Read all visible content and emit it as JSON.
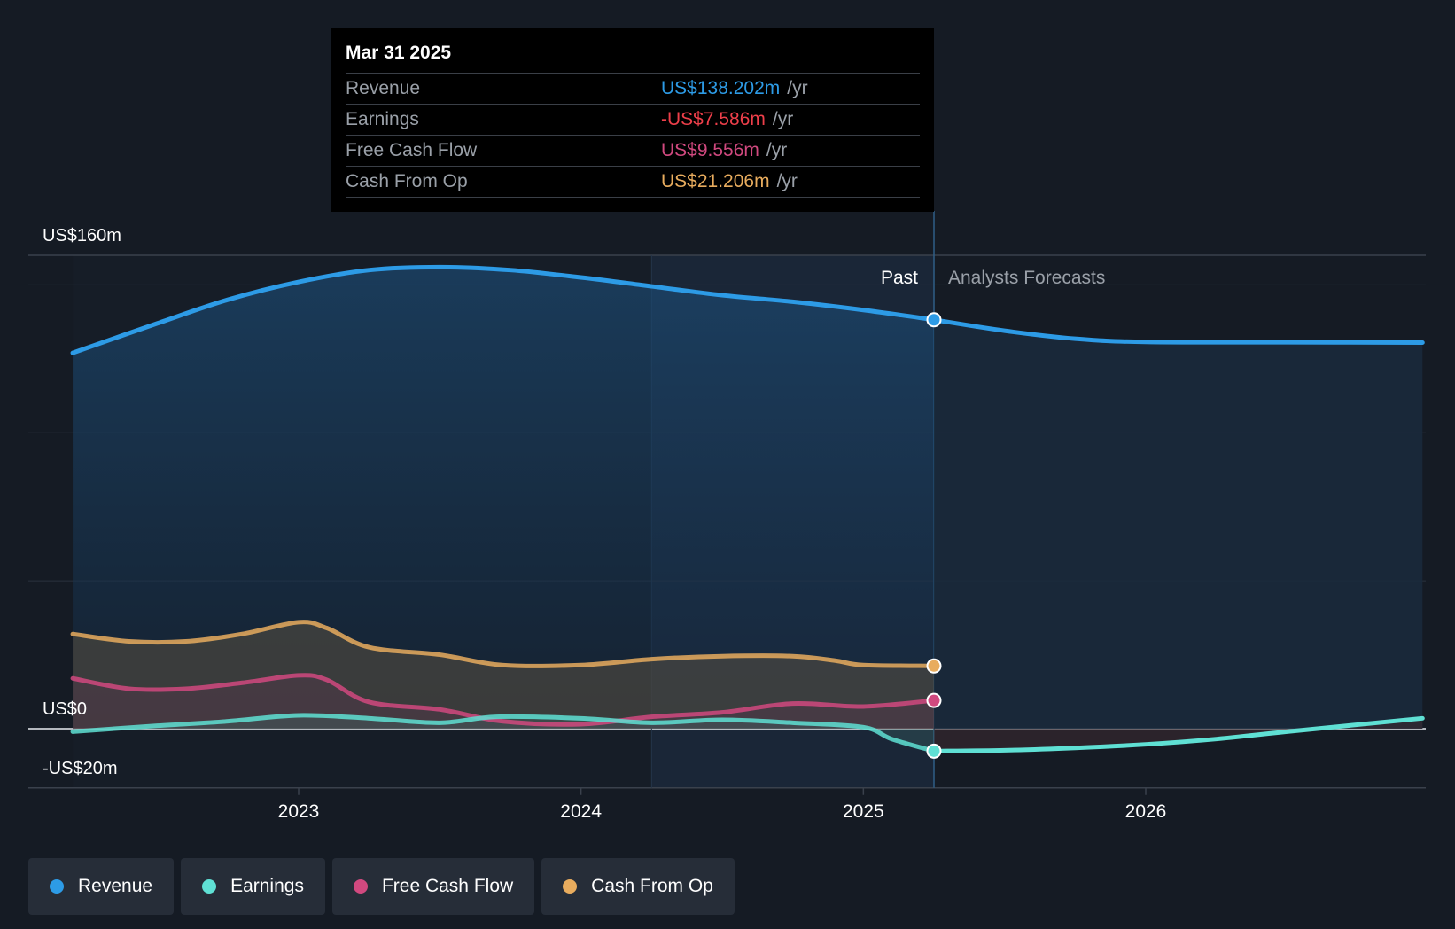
{
  "tooltip": {
    "date": "Mar 31 2025",
    "rows": [
      {
        "label": "Revenue",
        "value": "US$138.202m",
        "unit": "/yr",
        "color": "#2d9be6"
      },
      {
        "label": "Earnings",
        "value": "-US$7.586m",
        "unit": "/yr",
        "color": "#ee3f4a"
      },
      {
        "label": "Free Cash Flow",
        "value": "US$9.556m",
        "unit": "/yr",
        "color": "#d1497f"
      },
      {
        "label": "Cash From Op",
        "value": "US$21.206m",
        "unit": "/yr",
        "color": "#e8ac5e"
      }
    ]
  },
  "legend": [
    {
      "label": "Revenue",
      "color": "#2d9be6"
    },
    {
      "label": "Earnings",
      "color": "#5fe0d4"
    },
    {
      "label": "Free Cash Flow",
      "color": "#d1497f"
    },
    {
      "label": "Cash From Op",
      "color": "#e8ac5e"
    }
  ],
  "chart_data": {
    "type": "area",
    "ylim": [
      -20,
      160
    ],
    "xlim": [
      2022.2,
      2026.98
    ],
    "y_tick_labels": [
      {
        "value": 160,
        "label": "US$160m"
      },
      {
        "value": 0,
        "label": "US$0"
      },
      {
        "value": -20,
        "label": "-US$20m"
      }
    ],
    "gridlines": [
      150,
      100,
      50
    ],
    "x_ticks": [
      {
        "value": 2023,
        "label": "2023"
      },
      {
        "value": 2024,
        "label": "2024"
      },
      {
        "value": 2025,
        "label": "2025"
      },
      {
        "value": 2026,
        "label": "2026"
      }
    ],
    "divider_x": 2025.25,
    "highlight_start_x": 2024.25,
    "past_label": "Past",
    "forecast_label": "Analysts Forecasts",
    "series": [
      {
        "name": "Revenue",
        "color": "#2d9be6",
        "past": [
          [
            2022.2,
            127
          ],
          [
            2022.5,
            137
          ],
          [
            2022.75,
            145
          ],
          [
            2023,
            151
          ],
          [
            2023.25,
            155
          ],
          [
            2023.5,
            156
          ],
          [
            2023.75,
            155
          ],
          [
            2024,
            152.5
          ],
          [
            2024.25,
            149.5
          ],
          [
            2024.5,
            146.5
          ],
          [
            2024.75,
            144.3
          ],
          [
            2025,
            141.5
          ],
          [
            2025.25,
            138.2
          ]
        ],
        "forecast": [
          [
            2025.25,
            138.2
          ],
          [
            2025.5,
            134.5
          ],
          [
            2025.75,
            131.8
          ],
          [
            2026,
            130.7
          ],
          [
            2026.5,
            130.6
          ],
          [
            2026.98,
            130.5
          ]
        ]
      },
      {
        "name": "Cash From Op",
        "color": "#e8ac5e",
        "past": [
          [
            2022.2,
            32
          ],
          [
            2022.4,
            29.5
          ],
          [
            2022.6,
            29.5
          ],
          [
            2022.8,
            32
          ],
          [
            2023,
            36
          ],
          [
            2023.1,
            34
          ],
          [
            2023.25,
            27.5
          ],
          [
            2023.5,
            25
          ],
          [
            2023.72,
            21.5
          ],
          [
            2024,
            21.5
          ],
          [
            2024.25,
            23.5
          ],
          [
            2024.5,
            24.5
          ],
          [
            2024.75,
            24.5
          ],
          [
            2024.9,
            23
          ],
          [
            2025,
            21.5
          ],
          [
            2025.25,
            21.2
          ]
        ]
      },
      {
        "name": "Free Cash Flow",
        "color": "#d1497f",
        "past": [
          [
            2022.2,
            17
          ],
          [
            2022.4,
            13.5
          ],
          [
            2022.6,
            13.5
          ],
          [
            2022.8,
            15.5
          ],
          [
            2023,
            18
          ],
          [
            2023.1,
            16.5
          ],
          [
            2023.25,
            9
          ],
          [
            2023.5,
            6.5
          ],
          [
            2023.72,
            2.5
          ],
          [
            2024,
            1.5
          ],
          [
            2024.25,
            4
          ],
          [
            2024.5,
            5.5
          ],
          [
            2024.75,
            8.5
          ],
          [
            2025,
            7.5
          ],
          [
            2025.25,
            9.556
          ]
        ]
      },
      {
        "name": "Earnings",
        "color": "#5fe0d4",
        "past": [
          [
            2022.2,
            -1
          ],
          [
            2022.5,
            1
          ],
          [
            2022.75,
            2.5
          ],
          [
            2023,
            4.5
          ],
          [
            2023.25,
            3.5
          ],
          [
            2023.5,
            2
          ],
          [
            2023.7,
            4
          ],
          [
            2024,
            3.5
          ],
          [
            2024.25,
            2
          ],
          [
            2024.5,
            3
          ],
          [
            2024.75,
            2
          ],
          [
            2025,
            0.5
          ],
          [
            2025.1,
            -3.5
          ],
          [
            2025.25,
            -7.586
          ]
        ],
        "forecast": [
          [
            2025.25,
            -7.586
          ],
          [
            2025.5,
            -7.3
          ],
          [
            2025.75,
            -6.5
          ],
          [
            2026,
            -5.3
          ],
          [
            2026.25,
            -3.5
          ],
          [
            2026.5,
            -1
          ],
          [
            2026.98,
            3.5
          ]
        ]
      }
    ]
  }
}
